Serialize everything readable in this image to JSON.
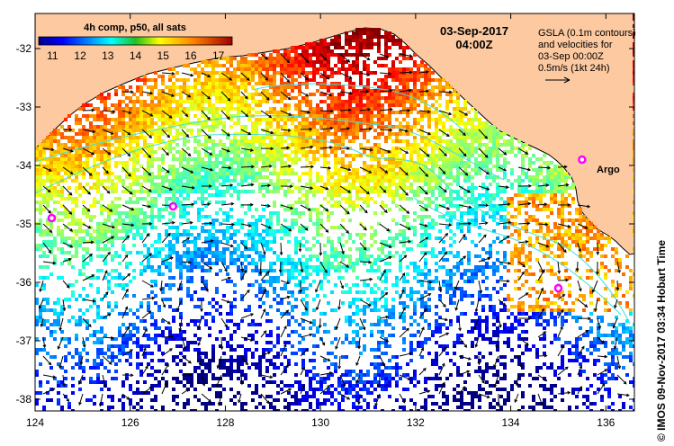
{
  "map": {
    "colorbar": {
      "title": "4h comp, p50, all sats",
      "min": 10.5,
      "max": 17.5,
      "labels": [
        "11",
        "12",
        "13",
        "14",
        "15",
        "16",
        "17"
      ],
      "label_values": [
        11,
        12,
        13,
        14,
        15,
        16,
        17
      ]
    },
    "date": "03-Sep-2017",
    "time": "04:00Z",
    "legend": {
      "line1": "GSLA (0.1m contours)",
      "line2": "and velocities for",
      "line3": "03-Sep 00:00Z",
      "line4": "0.5m/s (1kt 24h)"
    },
    "argo_label": "Argo",
    "credit": "© IMOS 09-Nov-2017 03:34 Hobart Time",
    "x_axis": {
      "labels": [
        "124",
        "126",
        "128",
        "130",
        "132",
        "134",
        "136"
      ],
      "values": [
        124,
        126,
        128,
        130,
        132,
        134,
        136
      ],
      "range": [
        124,
        136.6
      ]
    },
    "y_axis": {
      "labels": [
        "-32",
        "-33",
        "-34",
        "-35",
        "-36",
        "-37",
        "-38"
      ],
      "values": [
        -32,
        -33,
        -34,
        -35,
        -36,
        -37,
        -38
      ],
      "range": [
        -38.2,
        -31.4
      ]
    },
    "argo_floats": [
      {
        "lon": 135.5,
        "lat": -33.9
      },
      {
        "lon": 124.35,
        "lat": -34.9
      },
      {
        "lon": 126.9,
        "lat": -34.7
      },
      {
        "lon": 135.0,
        "lat": -36.1
      }
    ],
    "colors": {
      "land": "#fcc9a0",
      "arrow": "#000000",
      "contour": "#40e0e0",
      "argo": "#ff00ff"
    }
  }
}
